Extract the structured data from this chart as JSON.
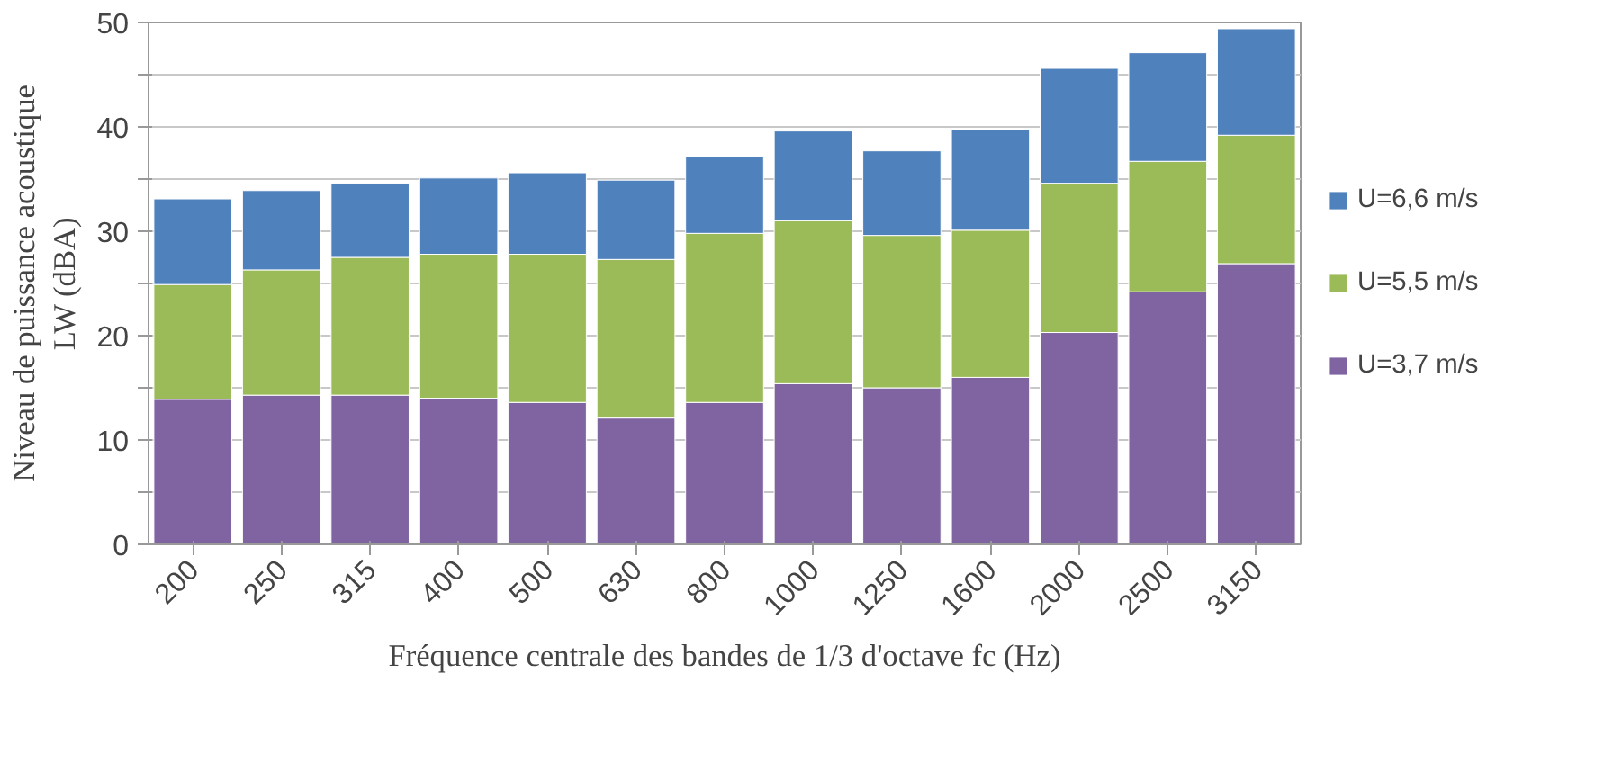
{
  "chart_data": {
    "type": "bar",
    "stacked": true,
    "xlabel": "Fréquence centrale des bandes de 1/3 d'octave fc (Hz)",
    "ylabel": "Niveau de puissance acoustique\nLW (dBA)",
    "categories": [
      "200",
      "250",
      "315",
      "400",
      "500",
      "630",
      "800",
      "1000",
      "1250",
      "1600",
      "2000",
      "2500",
      "3150"
    ],
    "series": [
      {
        "name": "U=3,7 m/s",
        "color": "#8064a2",
        "values": [
          13.9,
          14.3,
          14.3,
          14.0,
          13.6,
          12.1,
          13.6,
          15.4,
          15.0,
          16.0,
          20.3,
          24.2,
          26.9
        ]
      },
      {
        "name": "U=5,5 m/s",
        "color": "#9bbb59",
        "values": [
          11.0,
          12.0,
          13.2,
          13.8,
          14.2,
          15.2,
          16.2,
          15.6,
          14.6,
          14.1,
          14.3,
          12.5,
          12.3
        ]
      },
      {
        "name": "U=6,6 m/s",
        "color": "#4f81bd",
        "values": [
          8.2,
          7.6,
          7.1,
          7.3,
          7.8,
          7.6,
          7.4,
          8.6,
          8.1,
          9.6,
          11.0,
          10.4,
          10.2
        ]
      }
    ],
    "ylim": [
      0,
      50
    ],
    "yticks": [
      0,
      {
        "value": 5,
        "label": null
      },
      10,
      {
        "value": 15,
        "label": null
      },
      20,
      {
        "value": 25,
        "label": null
      },
      30,
      {
        "value": 35,
        "label": null
      },
      40,
      {
        "value": 45,
        "label": null
      },
      50
    ],
    "grid": "y",
    "legend": "right"
  }
}
